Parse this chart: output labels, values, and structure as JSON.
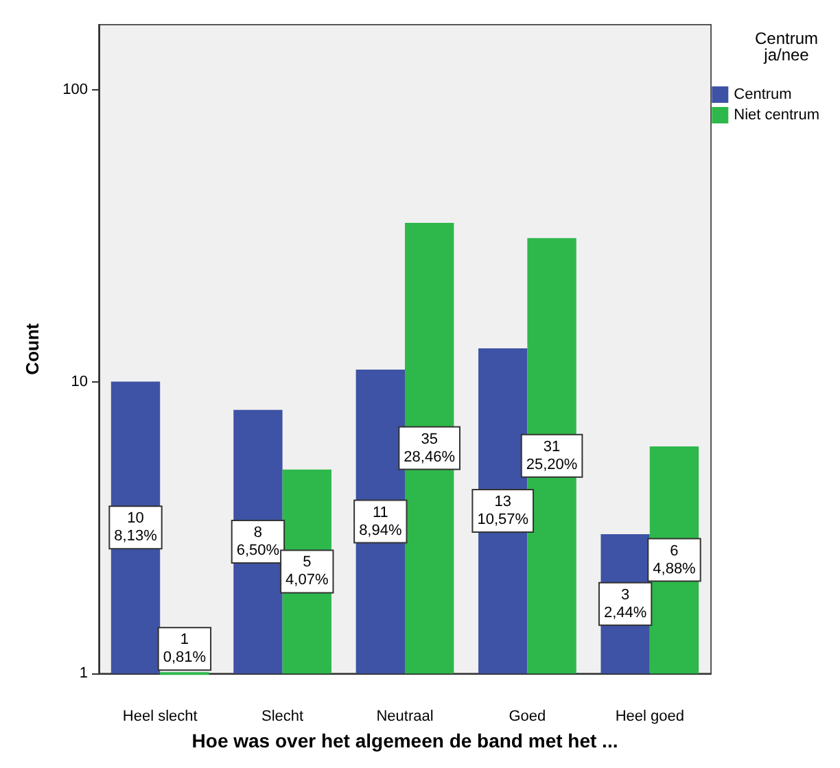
{
  "chart_data": {
    "type": "bar",
    "xlabel": "Hoe was over het algemeen de band met het ...",
    "ylabel": "Count",
    "legend_title": "Centrum ja/nee",
    "categories": [
      "Heel slecht",
      "Slecht",
      "Neutraal",
      "Goed",
      "Heel goed"
    ],
    "series": [
      {
        "name": "Centrum",
        "color": "#3e53a5",
        "values": [
          10,
          8,
          11,
          13,
          3
        ],
        "value_labels": [
          "10\n8,13%",
          "8\n6,50%",
          "11\n8,94%",
          "13\n10,57%",
          "3\n2,44%"
        ]
      },
      {
        "name": "Niet centrum",
        "color": "#2eb84b",
        "values": [
          1,
          5,
          35,
          31,
          6
        ],
        "value_labels": [
          "1\n0,81%",
          "5\n4,07%",
          "35\n28,46%",
          "31\n25,20%",
          "6\n4,88%"
        ]
      }
    ],
    "log": "y",
    "ylim": [
      1,
      167
    ],
    "yticks": [
      1,
      10,
      100
    ],
    "grid": false,
    "legend": "top right"
  }
}
